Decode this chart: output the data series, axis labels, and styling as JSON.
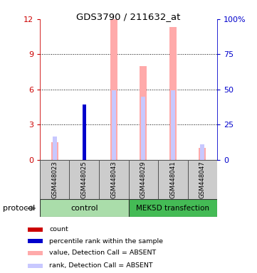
{
  "title": "GDS3790 / 211632_at",
  "samples": [
    "GSM448023",
    "GSM448025",
    "GSM448043",
    "GSM448029",
    "GSM448041",
    "GSM448047"
  ],
  "ylim_left": [
    0,
    12
  ],
  "ylim_right": [
    0,
    100
  ],
  "yticks_left": [
    0,
    3,
    6,
    9,
    12
  ],
  "yticks_right": [
    0,
    25,
    50,
    75,
    100
  ],
  "left_tick_color": "#cc0000",
  "right_tick_color": "#0000cc",
  "count_values": [
    0,
    4.5,
    0,
    0,
    0,
    0
  ],
  "count_color": "#cc0000",
  "percentile_values": [
    0,
    4.7,
    0,
    0,
    0,
    0
  ],
  "percentile_color": "#0000cc",
  "value_absent": [
    1.5,
    0,
    12.0,
    8.0,
    11.3,
    1.0
  ],
  "value_absent_color": "#ffaaaa",
  "rank_absent": [
    2.0,
    0,
    5.9,
    5.4,
    5.9,
    1.3
  ],
  "rank_absent_color": "#c8c8ff",
  "bw_pink": 0.25,
  "bw_blue_rank": 0.15,
  "bw_red": 0.12,
  "bw_blue_pct": 0.12,
  "group1_color": "#aaddaa",
  "group2_color": "#44bb55",
  "legend_items": [
    {
      "color": "#cc0000",
      "label": "count"
    },
    {
      "color": "#0000cc",
      "label": "percentile rank within the sample"
    },
    {
      "color": "#ffaaaa",
      "label": "value, Detection Call = ABSENT"
    },
    {
      "color": "#c8c8ff",
      "label": "rank, Detection Call = ABSENT"
    }
  ]
}
